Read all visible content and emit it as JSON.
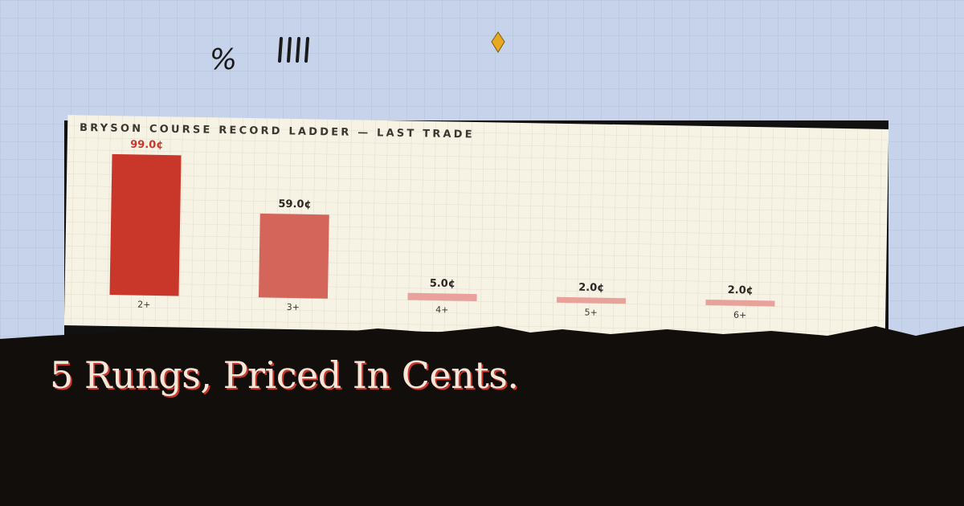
{
  "chart_data": {
    "type": "bar",
    "title": "BRYSON COURSE RECORD LADDER — LAST TRADE",
    "categories": [
      "2+",
      "3+",
      "4+",
      "5+",
      "6+"
    ],
    "values": [
      99,
      59,
      5,
      2,
      2
    ],
    "value_labels": [
      "99.0¢",
      "59.0¢",
      "5.0¢",
      "2.0¢",
      "2.0¢"
    ],
    "colors": [
      "#c8372a",
      "#d4655a",
      "#e8a29b",
      "#e8a29b",
      "#e8a29b"
    ]
  },
  "headline": "5 Rungs, Priced In Cents.",
  "doodle": "%"
}
